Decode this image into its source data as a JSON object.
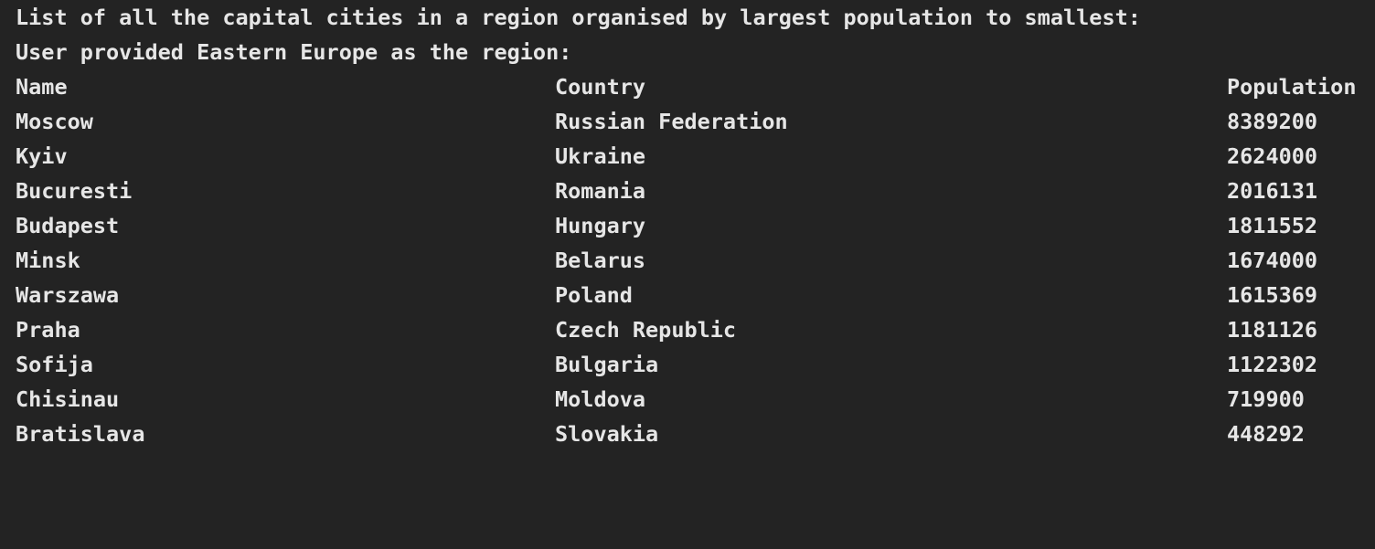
{
  "terminal": {
    "intro_line_1": "List of all the capital cities in a region organised by largest population to smallest:",
    "intro_line_2": "User provided Eastern Europe as the region:"
  },
  "table": {
    "headers": {
      "name": "Name",
      "country": "Country",
      "population": "Population"
    },
    "rows": [
      {
        "name": "Moscow",
        "country": "Russian Federation",
        "population": "8389200"
      },
      {
        "name": "Kyiv",
        "country": "Ukraine",
        "population": "2624000"
      },
      {
        "name": "Bucuresti",
        "country": "Romania",
        "population": "2016131"
      },
      {
        "name": "Budapest",
        "country": "Hungary",
        "population": "1811552"
      },
      {
        "name": "Minsk",
        "country": "Belarus",
        "population": "1674000"
      },
      {
        "name": "Warszawa",
        "country": "Poland",
        "population": "1615369"
      },
      {
        "name": "Praha",
        "country": "Czech Republic",
        "population": "1181126"
      },
      {
        "name": "Sofija",
        "country": "Bulgaria",
        "population": "1122302"
      },
      {
        "name": "Chisinau",
        "country": "Moldova",
        "population": "719900"
      },
      {
        "name": "Bratislava",
        "country": "Slovakia",
        "population": "448292"
      }
    ]
  },
  "colors": {
    "background": "#232323",
    "text": "#e6e6e6"
  }
}
